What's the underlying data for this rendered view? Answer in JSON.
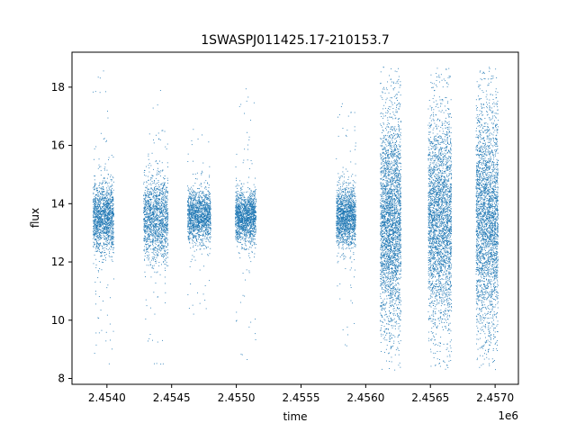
{
  "chart_data": {
    "type": "scatter",
    "title": "1SWASPJ011425.17-210153.7",
    "xlabel": "time",
    "ylabel": "flux",
    "x_offset_label": "1e6",
    "xlim": [
      2453730,
      2457180
    ],
    "ylim": [
      7.8,
      19.2
    ],
    "x_ticks": [
      2454000,
      2454500,
      2455000,
      2455500,
      2456000,
      2456500,
      2457000
    ],
    "x_tick_labels": [
      "2.4540",
      "2.4545",
      "2.4550",
      "2.4555",
      "2.4560",
      "2.4565",
      "2.4570"
    ],
    "y_ticks": [
      8,
      10,
      12,
      14,
      16,
      18
    ],
    "y_tick_labels": [
      "8",
      "10",
      "12",
      "14",
      "16",
      "18"
    ],
    "grid": false,
    "legend": "none",
    "marker_color": "#1f77b4",
    "point_count": "dense (~60000 points in 8 observing seasons)",
    "clusters": [
      {
        "t_start": 2453890,
        "t_end": 2454050,
        "core_low": 12.8,
        "core_high": 14.3,
        "min": 8.5,
        "max": 18.6
      },
      {
        "t_start": 2454280,
        "t_end": 2454470,
        "core_low": 12.6,
        "core_high": 14.4,
        "min": 8.4,
        "max": 17.9
      },
      {
        "t_start": 2454620,
        "t_end": 2454800,
        "core_low": 13.0,
        "core_high": 14.1,
        "min": 10.2,
        "max": 16.6
      },
      {
        "t_start": 2454990,
        "t_end": 2455150,
        "core_low": 13.0,
        "core_high": 14.1,
        "min": 8.6,
        "max": 18.0
      },
      {
        "t_start": 2455770,
        "t_end": 2455920,
        "core_low": 12.9,
        "core_high": 14.2,
        "min": 9.0,
        "max": 17.5
      },
      {
        "t_start": 2456110,
        "t_end": 2456270,
        "core_low": 11.2,
        "core_high": 15.6,
        "min": 8.3,
        "max": 18.7
      },
      {
        "t_start": 2456480,
        "t_end": 2456660,
        "core_low": 11.2,
        "core_high": 15.6,
        "min": 8.3,
        "max": 18.7
      },
      {
        "t_start": 2456850,
        "t_end": 2457020,
        "core_low": 11.0,
        "core_high": 15.8,
        "min": 8.3,
        "max": 18.7
      }
    ]
  }
}
